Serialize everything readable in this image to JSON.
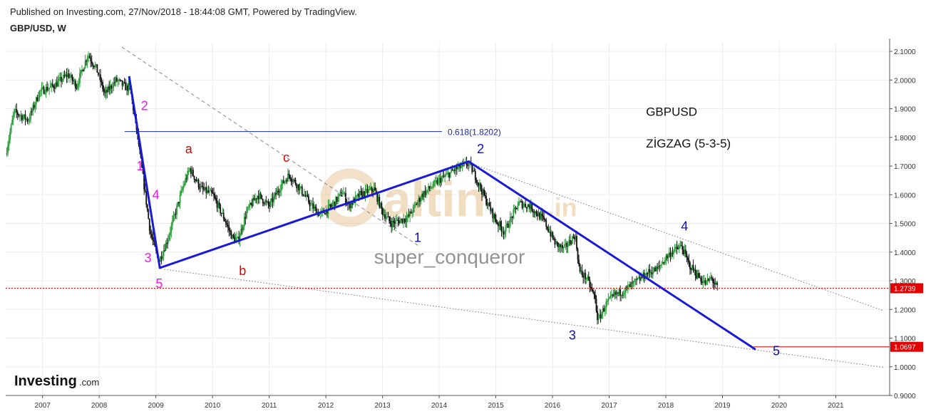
{
  "header": {
    "published": "Published on Investing.com, 27/Nov/2018 - 18:44:08 GMT, Powered by TradingView.",
    "symbol": "GBP/USD, W"
  },
  "chart_data": {
    "type": "candlestick",
    "symbol": "GBP/USD",
    "timeframe": "W",
    "xlim": [
      2006.35,
      2021.95
    ],
    "ylim": [
      0.9,
      2.13
    ],
    "x_ticks": [
      "2007",
      "2008",
      "2009",
      "2010",
      "2011",
      "2012",
      "2013",
      "2014",
      "2015",
      "2016",
      "2017",
      "2018",
      "2019",
      "2020",
      "2021"
    ],
    "y_ticks": [
      "2.1000",
      "2.0000",
      "1.9000",
      "1.8000",
      "1.7000",
      "1.6000",
      "1.5000",
      "1.4000",
      "1.3000",
      "1.2000",
      "1.1000",
      "1.0000",
      "0.9000"
    ],
    "grid": true,
    "price_path": [
      [
        2006.35,
        1.74
      ],
      [
        2006.5,
        1.89
      ],
      [
        2006.75,
        1.86
      ],
      [
        2006.95,
        1.96
      ],
      [
        2007.2,
        1.98
      ],
      [
        2007.45,
        2.02
      ],
      [
        2007.6,
        1.98
      ],
      [
        2007.8,
        2.09
      ],
      [
        2007.95,
        2.04
      ],
      [
        2008.1,
        1.95
      ],
      [
        2008.3,
        2.0
      ],
      [
        2008.5,
        1.97
      ],
      [
        2008.53,
        1.99
      ],
      [
        2008.68,
        1.8
      ],
      [
        2008.8,
        1.62
      ],
      [
        2008.9,
        1.47
      ],
      [
        2009.0,
        1.4
      ],
      [
        2009.06,
        1.37
      ],
      [
        2009.2,
        1.44
      ],
      [
        2009.35,
        1.54
      ],
      [
        2009.5,
        1.64
      ],
      [
        2009.6,
        1.69
      ],
      [
        2009.8,
        1.62
      ],
      [
        2010.0,
        1.6
      ],
      [
        2010.2,
        1.52
      ],
      [
        2010.35,
        1.45
      ],
      [
        2010.45,
        1.44
      ],
      [
        2010.6,
        1.54
      ],
      [
        2010.8,
        1.6
      ],
      [
        2011.0,
        1.56
      ],
      [
        2011.2,
        1.63
      ],
      [
        2011.35,
        1.67
      ],
      [
        2011.55,
        1.62
      ],
      [
        2011.75,
        1.56
      ],
      [
        2011.9,
        1.53
      ],
      [
        2012.1,
        1.56
      ],
      [
        2012.3,
        1.61
      ],
      [
        2012.4,
        1.56
      ],
      [
        2012.6,
        1.6
      ],
      [
        2012.85,
        1.62
      ],
      [
        2013.0,
        1.54
      ],
      [
        2013.15,
        1.5
      ],
      [
        2013.45,
        1.52
      ],
      [
        2013.7,
        1.6
      ],
      [
        2014.0,
        1.65
      ],
      [
        2014.3,
        1.69
      ],
      [
        2014.52,
        1.71
      ],
      [
        2014.65,
        1.66
      ],
      [
        2014.85,
        1.57
      ],
      [
        2015.0,
        1.51
      ],
      [
        2015.15,
        1.47
      ],
      [
        2015.4,
        1.57
      ],
      [
        2015.6,
        1.56
      ],
      [
        2015.85,
        1.51
      ],
      [
        2016.05,
        1.43
      ],
      [
        2016.2,
        1.41
      ],
      [
        2016.4,
        1.46
      ],
      [
        2016.48,
        1.33
      ],
      [
        2016.6,
        1.31
      ],
      [
        2016.75,
        1.24
      ],
      [
        2016.8,
        1.16
      ],
      [
        2016.95,
        1.22
      ],
      [
        2017.1,
        1.25
      ],
      [
        2017.3,
        1.27
      ],
      [
        2017.5,
        1.3
      ],
      [
        2017.7,
        1.33
      ],
      [
        2017.85,
        1.34
      ],
      [
        2018.0,
        1.38
      ],
      [
        2018.1,
        1.4
      ],
      [
        2018.28,
        1.42
      ],
      [
        2018.4,
        1.36
      ],
      [
        2018.55,
        1.32
      ],
      [
        2018.7,
        1.29
      ],
      [
        2018.8,
        1.31
      ],
      [
        2018.91,
        1.2739
      ]
    ],
    "current_price": "1.2739",
    "target_price": "1.0697",
    "fib_level": {
      "label": "0.618(1.8202)",
      "value": 1.8202,
      "x_start": 2008.45,
      "x_end": 2014.05
    },
    "wave_lines": [
      {
        "points": [
          [
            2008.53,
            2.01
          ],
          [
            2009.07,
            1.345
          ]
        ]
      },
      {
        "points": [
          [
            2009.07,
            1.345
          ],
          [
            2014.52,
            1.716
          ]
        ]
      },
      {
        "points": [
          [
            2014.52,
            1.716
          ],
          [
            2019.57,
            1.062
          ]
        ]
      }
    ],
    "trend_lines": [
      {
        "style": "dashed",
        "points": [
          [
            2008.4,
            2.115
          ],
          [
            2013.65,
            1.42
          ]
        ]
      },
      {
        "style": "dotted",
        "points": [
          [
            2014.55,
            1.71
          ],
          [
            2021.85,
            1.195
          ]
        ]
      },
      {
        "style": "dotted",
        "points": [
          [
            2009.15,
            1.34
          ],
          [
            2021.85,
            0.998
          ]
        ]
      }
    ],
    "annotations": [
      {
        "text": "2",
        "x": 2008.8,
        "y": 1.895,
        "color": "#e020e0"
      },
      {
        "text": "1",
        "x": 2008.72,
        "y": 1.685,
        "color": "#e020e0"
      },
      {
        "text": "4",
        "x": 2009.0,
        "y": 1.585,
        "color": "#e020e0"
      },
      {
        "text": "3",
        "x": 2008.86,
        "y": 1.365,
        "color": "#e020e0"
      },
      {
        "text": "5",
        "x": 2009.06,
        "y": 1.275,
        "color": "#e020e0"
      },
      {
        "text": "a",
        "x": 2009.58,
        "y": 1.745,
        "color": "#e00000"
      },
      {
        "text": "b",
        "x": 2010.53,
        "y": 1.32,
        "color": "#e00000"
      },
      {
        "text": "c",
        "x": 2011.3,
        "y": 1.715,
        "color": "#e00000"
      },
      {
        "text": "1",
        "x": 2013.62,
        "y": 1.435,
        "color": "#1010b0"
      },
      {
        "text": "2",
        "x": 2014.73,
        "y": 1.745,
        "color": "#1010b0"
      },
      {
        "text": "3",
        "x": 2016.35,
        "y": 1.095,
        "color": "#1010b0"
      },
      {
        "text": "4",
        "x": 2018.33,
        "y": 1.475,
        "color": "#1010b0"
      },
      {
        "text": "5",
        "x": 2019.95,
        "y": 1.04,
        "color": "#1010b0"
      }
    ],
    "notes": [
      {
        "text": "GBPUSD",
        "x": 2017.65,
        "y": 1.875
      },
      {
        "text": "ZİGZAG (5-3-5)",
        "x": 2017.65,
        "y": 1.765
      }
    ],
    "watermark": {
      "brand": "altin",
      "suffix": ".in",
      "user": "super_conqueror"
    },
    "logo": {
      "text": "Investing",
      "suffix": ".com"
    },
    "colors": {
      "up_candle": "#2a9d3a",
      "down_candle": "#111111",
      "wave_line": "#1a1ad6",
      "fib_line": "#1a2a9a",
      "fib_text": "#1a2a9a",
      "current_line": "#e00000",
      "price_tag": "#e00000",
      "trend_line": "#777777",
      "grid": "#ececec",
      "watermark": "#e8c79a"
    }
  }
}
